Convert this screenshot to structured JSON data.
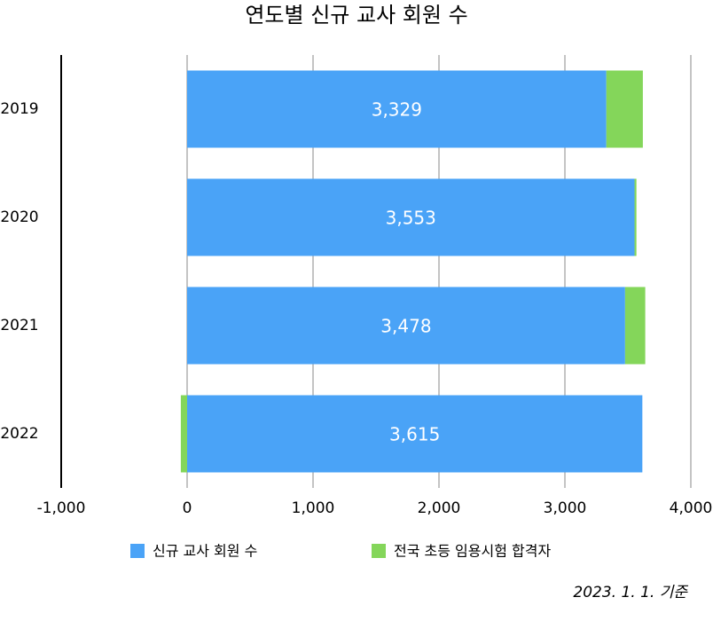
{
  "chart_data": {
    "type": "stacked-bar-horizontal",
    "title": "연도별 신규 교사 회원 수",
    "categories": [
      "2019",
      "2020",
      "2021",
      "2022"
    ],
    "series": [
      {
        "name": "신규 교사 회원 수",
        "color": "#4aa3f7",
        "values": [
          3329,
          3553,
          3478,
          3615
        ],
        "value_labels": [
          "3,329",
          "3,553",
          "3,478",
          "3,615"
        ]
      },
      {
        "name": "전국 초등 임용시험 합격자",
        "color": "#84d65a",
        "values": [
          290,
          15,
          160,
          -50
        ]
      }
    ],
    "xlim": [
      -1000,
      4000
    ],
    "xticks": [
      {
        "value": -1000,
        "label": "-1,000"
      },
      0,
      {
        "value": 1000,
        "label": "1,000"
      },
      {
        "value": 2000,
        "label": "2,000"
      },
      {
        "value": 3000,
        "label": "3,000"
      },
      {
        "value": 4000,
        "label": "4,000"
      }
    ],
    "grid": true,
    "legend": "bottom",
    "note": "2023. 1. 1. 기준"
  }
}
